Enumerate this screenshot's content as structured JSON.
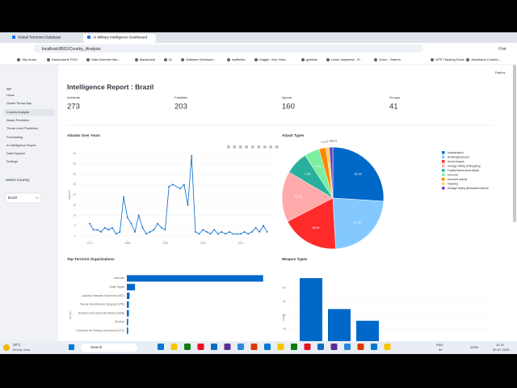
{
  "browser": {
    "tabs": [
      "Global Terrorism Database",
      "AI Military Intelligence Dashboard"
    ],
    "url": "localhost:8501/Country_Analysis",
    "chat": "Chat",
    "bookmarks": [
      "Olly music",
      "Dashboard1 POO",
      "Data Scientist Inte...",
      "blackboxai",
      "AI",
      "Software Develope...",
      "myfiberto",
      "Kaggle: Your Hom...",
      "geeksfo",
      "Learn Japanese - R...",
      "11zon - Search",
      "GPS Tracking Solut...",
      "Jharkhand Combin..."
    ]
  },
  "sidebar": {
    "items": [
      "app",
      "Home",
      "Global Threat Map",
      "Country Analysis",
      "Attack Prediction",
      "Threat Level Prediction",
      "Forecasting",
      "AI Intelligence Report",
      "Data Explorer",
      "Settings"
    ],
    "select_label": "Select Country",
    "select_value": "Brazil"
  },
  "header": {
    "deploy": "Deploy",
    "title": "Intelligence Report : Brazil"
  },
  "metrics": [
    {
      "label": "Incidents",
      "value": 273
    },
    {
      "label": "Fatalities",
      "value": 203
    },
    {
      "label": "Injured",
      "value": 160
    },
    {
      "label": "Groups",
      "value": 41
    }
  ],
  "chart_data": [
    {
      "type": "line",
      "title": "Attacks Over Years",
      "y_label": "Attacks",
      "color": "#0068c9",
      "x": [
        1970,
        1971,
        1972,
        1973,
        1974,
        1975,
        1976,
        1977,
        1978,
        1979,
        1980,
        1981,
        1982,
        1983,
        1984,
        1985,
        1986,
        1987,
        1988,
        1989,
        1990,
        1991,
        1992,
        1994,
        1995,
        1996,
        1997,
        1998,
        1999,
        2000,
        2001,
        2002,
        2003,
        2004,
        2005,
        2006,
        2007,
        2008,
        2009,
        2010,
        2011,
        2012,
        2013,
        2014,
        2015,
        2016,
        2017
      ],
      "values": [
        6,
        3,
        3,
        2,
        4,
        3,
        4,
        1,
        2,
        19,
        9,
        6,
        2,
        10,
        4,
        1,
        2,
        3,
        6,
        4,
        3,
        24,
        25,
        23,
        25,
        15,
        39,
        2,
        1,
        3,
        2,
        1,
        3,
        1,
        2,
        1,
        2,
        1,
        1,
        1,
        2,
        1,
        2,
        4,
        2,
        5,
        2
      ],
      "xlim": [
        1967,
        2019
      ],
      "xticks": [
        1970,
        1980,
        1990,
        2000,
        2010
      ],
      "ylim": [
        -2,
        42
      ],
      "yticks": [
        0,
        5,
        10,
        15,
        20,
        25,
        30,
        35,
        40
      ],
      "grid": true
    },
    {
      "type": "pie",
      "title": "Attack Types",
      "categories": [
        "Assassination",
        "Bombing/Explosion",
        "Armed Assault",
        "Hostage Taking (Kidnapping)",
        "Facility/Infrastructure Attack",
        "Unknown",
        "Unarmed Assault",
        "Hijacking",
        "Hostage Taking (Barricade Incident)"
      ],
      "values": [
        26.0,
        23.1,
        18.3,
        16.1,
        7.3,
        4.8,
        2.2,
        1.1,
        1.1
      ],
      "value_labels": [
        "26.0%",
        "23.1%",
        "18.3%",
        "16.1%",
        "7.3%",
        "4.8%",
        "2.2%",
        "1.1%",
        "1.1%"
      ],
      "colors": [
        "#0068c9",
        "#83c9ff",
        "#ff2b2b",
        "#ffabab",
        "#29b09d",
        "#7defa1",
        "#ff8700",
        "#ffd16a",
        "#6d3fc0"
      ],
      "legend": "right"
    },
    {
      "type": "barh",
      "title": "Top Terrorist Organizations",
      "y_label": "group",
      "color": "#0068c9",
      "categories": [
        "Unknown",
        "Death Squad",
        "Landless Peasants' Movement (MST)",
        "Popular Revolutionary Vanguard (VPR)",
        "Brazilian Anti-Communist Alliance (AAB)",
        "Gunmen",
        "Command for Hunting Communists (CCC)"
      ],
      "values": [
        199,
        12,
        4,
        3,
        3,
        2,
        2
      ],
      "xlim": [
        0,
        210
      ]
    },
    {
      "type": "bar",
      "title": "Weapon Types",
      "y_label": "count",
      "color": "#0068c9",
      "categories": [
        null,
        null,
        null
      ],
      "values": [
        114,
        69,
        52
      ],
      "ylim": [
        0,
        125
      ],
      "yticks": [
        40,
        60,
        80,
        100
      ],
      "grid": true
    }
  ],
  "taskbar": {
    "temp": "29°C",
    "weather": "Mostly clear",
    "search": "Search",
    "lang": "ENG",
    "region": "IN",
    "battery": "100%",
    "time": "11:19",
    "date": "30-07-2025"
  }
}
